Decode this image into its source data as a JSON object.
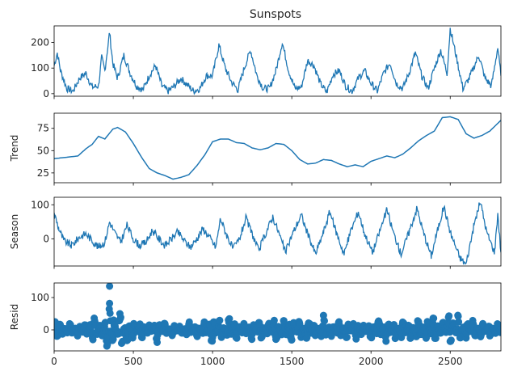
{
  "chart_data": [
    {
      "type": "line",
      "title": "Sunspots",
      "ylabel": "",
      "xlim": [
        0,
        2820
      ],
      "ylim": [
        -10,
        265
      ],
      "yticks": [
        0,
        100,
        200
      ],
      "xticks_labeled": false,
      "color": "#1f77b4",
      "series": [
        {
          "values_description_free": true,
          "points": [
            [
              0,
              110
            ],
            [
              20,
              160
            ],
            [
              40,
              90
            ],
            [
              80,
              20
            ],
            [
              120,
              10
            ],
            [
              160,
              60
            ],
            [
              200,
              80
            ],
            [
              240,
              25
            ],
            [
              280,
              30
            ],
            [
              300,
              140
            ],
            [
              320,
              90
            ],
            [
              350,
              240
            ],
            [
              370,
              120
            ],
            [
              400,
              60
            ],
            [
              440,
              150
            ],
            [
              480,
              80
            ],
            [
              520,
              30
            ],
            [
              560,
              15
            ],
            [
              600,
              70
            ],
            [
              640,
              110
            ],
            [
              680,
              30
            ],
            [
              720,
              10
            ],
            [
              760,
              30
            ],
            [
              800,
              60
            ],
            [
              840,
              35
            ],
            [
              880,
              10
            ],
            [
              920,
              20
            ],
            [
              960,
              70
            ],
            [
              1000,
              70
            ],
            [
              1040,
              190
            ],
            [
              1080,
              100
            ],
            [
              1120,
              45
            ],
            [
              1160,
              15
            ],
            [
              1200,
              100
            ],
            [
              1240,
              170
            ],
            [
              1280,
              70
            ],
            [
              1320,
              20
            ],
            [
              1360,
              20
            ],
            [
              1400,
              90
            ],
            [
              1440,
              200
            ],
            [
              1480,
              90
            ],
            [
              1520,
              20
            ],
            [
              1560,
              25
            ],
            [
              1600,
              130
            ],
            [
              1640,
              110
            ],
            [
              1680,
              40
            ],
            [
              1720,
              5
            ],
            [
              1760,
              75
            ],
            [
              1800,
              90
            ],
            [
              1840,
              30
            ],
            [
              1880,
              10
            ],
            [
              1920,
              60
            ],
            [
              1960,
              90
            ],
            [
              2000,
              40
            ],
            [
              2040,
              10
            ],
            [
              2080,
              80
            ],
            [
              2120,
              120
            ],
            [
              2160,
              40
            ],
            [
              2200,
              20
            ],
            [
              2240,
              80
            ],
            [
              2280,
              160
            ],
            [
              2320,
              70
            ],
            [
              2360,
              20
            ],
            [
              2400,
              100
            ],
            [
              2440,
              170
            ],
            [
              2480,
              80
            ],
            [
              2500,
              255
            ],
            [
              2540,
              140
            ],
            [
              2580,
              20
            ],
            [
              2620,
              60
            ],
            [
              2680,
              150
            ],
            [
              2720,
              60
            ],
            [
              2760,
              30
            ],
            [
              2800,
              180
            ],
            [
              2820,
              70
            ]
          ]
        }
      ]
    },
    {
      "type": "line",
      "title": "",
      "ylabel": "Trend",
      "xlim": [
        0,
        2820
      ],
      "ylim": [
        14,
        92
      ],
      "yticks": [
        25,
        50,
        75
      ],
      "xticks_labeled": false,
      "color": "#1f77b4",
      "series": [
        {
          "points": [
            [
              0,
              41
            ],
            [
              50,
              42
            ],
            [
              100,
              43
            ],
            [
              150,
              44
            ],
            [
              200,
              52
            ],
            [
              240,
              57
            ],
            [
              280,
              66
            ],
            [
              320,
              63
            ],
            [
              370,
              74
            ],
            [
              400,
              76
            ],
            [
              450,
              71
            ],
            [
              500,
              58
            ],
            [
              550,
              43
            ],
            [
              600,
              30
            ],
            [
              650,
              25
            ],
            [
              700,
              22
            ],
            [
              750,
              18
            ],
            [
              800,
              20
            ],
            [
              850,
              23
            ],
            [
              900,
              33
            ],
            [
              950,
              45
            ],
            [
              1000,
              60
            ],
            [
              1050,
              63
            ],
            [
              1100,
              63
            ],
            [
              1150,
              59
            ],
            [
              1200,
              58
            ],
            [
              1250,
              53
            ],
            [
              1300,
              51
            ],
            [
              1350,
              53
            ],
            [
              1400,
              58
            ],
            [
              1450,
              57
            ],
            [
              1500,
              50
            ],
            [
              1550,
              40
            ],
            [
              1600,
              35
            ],
            [
              1650,
              36
            ],
            [
              1700,
              40
            ],
            [
              1750,
              39
            ],
            [
              1800,
              35
            ],
            [
              1850,
              32
            ],
            [
              1900,
              34
            ],
            [
              1950,
              32
            ],
            [
              2000,
              38
            ],
            [
              2050,
              41
            ],
            [
              2100,
              44
            ],
            [
              2150,
              42
            ],
            [
              2200,
              46
            ],
            [
              2250,
              53
            ],
            [
              2300,
              61
            ],
            [
              2350,
              67
            ],
            [
              2400,
              72
            ],
            [
              2450,
              87
            ],
            [
              2500,
              88
            ],
            [
              2550,
              85
            ],
            [
              2600,
              69
            ],
            [
              2650,
              64
            ],
            [
              2700,
              67
            ],
            [
              2750,
              72
            ],
            [
              2820,
              84
            ]
          ]
        }
      ]
    },
    {
      "type": "line",
      "title": "",
      "ylabel": "Season",
      "xlim": [
        0,
        2820
      ],
      "ylim": [
        -80,
        122
      ],
      "yticks": [
        0,
        100
      ],
      "xticks_labeled": false,
      "color": "#1f77b4",
      "series": [
        {
          "points": [
            [
              0,
              75
            ],
            [
              30,
              30
            ],
            [
              60,
              -5
            ],
            [
              110,
              -20
            ],
            [
              160,
              5
            ],
            [
              200,
              15
            ],
            [
              240,
              -5
            ],
            [
              280,
              -25
            ],
            [
              320,
              -10
            ],
            [
              350,
              50
            ],
            [
              380,
              20
            ],
            [
              420,
              -10
            ],
            [
              460,
              40
            ],
            [
              500,
              0
            ],
            [
              540,
              -20
            ],
            [
              580,
              -10
            ],
            [
              620,
              25
            ],
            [
              660,
              0
            ],
            [
              700,
              -20
            ],
            [
              740,
              0
            ],
            [
              780,
              20
            ],
            [
              820,
              -5
            ],
            [
              860,
              -25
            ],
            [
              900,
              0
            ],
            [
              940,
              30
            ],
            [
              980,
              5
            ],
            [
              1020,
              -25
            ],
            [
              1050,
              60
            ],
            [
              1090,
              10
            ],
            [
              1130,
              -30
            ],
            [
              1170,
              0
            ],
            [
              1210,
              60
            ],
            [
              1250,
              15
            ],
            [
              1290,
              -35
            ],
            [
              1330,
              10
            ],
            [
              1380,
              65
            ],
            [
              1420,
              15
            ],
            [
              1460,
              -40
            ],
            [
              1500,
              10
            ],
            [
              1560,
              70
            ],
            [
              1600,
              15
            ],
            [
              1650,
              -45
            ],
            [
              1700,
              20
            ],
            [
              1740,
              80
            ],
            [
              1780,
              20
            ],
            [
              1830,
              -45
            ],
            [
              1870,
              20
            ],
            [
              1920,
              80
            ],
            [
              1960,
              15
            ],
            [
              2010,
              -40
            ],
            [
              2050,
              15
            ],
            [
              2100,
              85
            ],
            [
              2140,
              20
            ],
            [
              2190,
              -45
            ],
            [
              2240,
              20
            ],
            [
              2290,
              90
            ],
            [
              2330,
              20
            ],
            [
              2380,
              -50
            ],
            [
              2420,
              25
            ],
            [
              2460,
              95
            ],
            [
              2500,
              20
            ],
            [
              2560,
              -55
            ],
            [
              2600,
              -75
            ],
            [
              2650,
              40
            ],
            [
              2690,
              110
            ],
            [
              2730,
              20
            ],
            [
              2780,
              -40
            ],
            [
              2800,
              75
            ],
            [
              2820,
              -40
            ]
          ]
        }
      ]
    },
    {
      "type": "scatter",
      "title": "",
      "ylabel": "Resid",
      "xlim": [
        0,
        2820
      ],
      "ylim": [
        -65,
        145
      ],
      "yticks": [
        0,
        100
      ],
      "xticks": [
        0,
        500,
        1000,
        1500,
        2000,
        2500
      ],
      "xticks_labeled": true,
      "color": "#1f77b4",
      "series": [
        {
          "envelope": [
            [
              0,
              30
            ],
            [
              50,
              20
            ],
            [
              100,
              -25
            ],
            [
              150,
              25
            ],
            [
              200,
              -30
            ],
            [
              250,
              60
            ],
            [
              300,
              -40
            ],
            [
              350,
              120
            ],
            [
              370,
              -60
            ],
            [
              420,
              80
            ],
            [
              460,
              -50
            ],
            [
              500,
              40
            ],
            [
              550,
              -35
            ],
            [
              600,
              25
            ],
            [
              650,
              -40
            ],
            [
              700,
              30
            ],
            [
              750,
              -25
            ],
            [
              800,
              20
            ],
            [
              850,
              -30
            ],
            [
              900,
              25
            ],
            [
              950,
              -35
            ],
            [
              1000,
              60
            ],
            [
              1050,
              -50
            ],
            [
              1100,
              50
            ],
            [
              1150,
              -40
            ],
            [
              1200,
              30
            ],
            [
              1250,
              -35
            ],
            [
              1300,
              40
            ],
            [
              1350,
              -30
            ],
            [
              1400,
              50
            ],
            [
              1450,
              -45
            ],
            [
              1500,
              55
            ],
            [
              1550,
              -40
            ],
            [
              1600,
              45
            ],
            [
              1650,
              -35
            ],
            [
              1700,
              45
            ],
            [
              1750,
              -30
            ],
            [
              1800,
              30
            ],
            [
              1850,
              -35
            ],
            [
              1900,
              40
            ],
            [
              1950,
              -30
            ],
            [
              2000,
              35
            ],
            [
              2050,
              -40
            ],
            [
              2100,
              45
            ],
            [
              2150,
              -35
            ],
            [
              2200,
              40
            ],
            [
              2250,
              -40
            ],
            [
              2300,
              50
            ],
            [
              2350,
              -45
            ],
            [
              2400,
              55
            ],
            [
              2450,
              -40
            ],
            [
              2500,
              80
            ],
            [
              2550,
              -55
            ],
            [
              2600,
              45
            ],
            [
              2650,
              -45
            ],
            [
              2700,
              35
            ],
            [
              2750,
              -30
            ],
            [
              2800,
              30
            ],
            [
              2820,
              -20
            ]
          ]
        }
      ]
    }
  ]
}
